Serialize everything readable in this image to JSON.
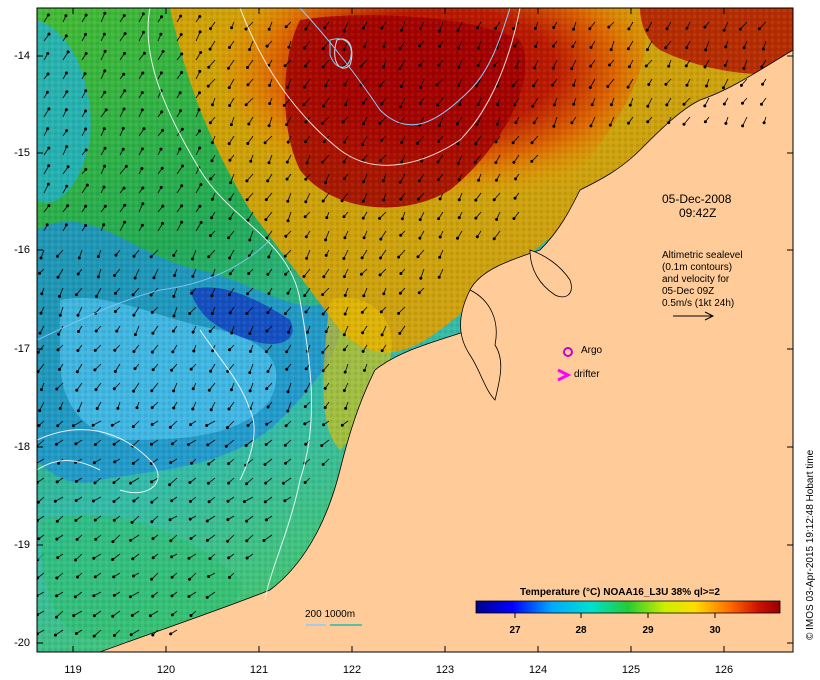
{
  "figure": {
    "date_line1": "05-Dec-2008",
    "date_line2": "09:42Z",
    "altimetry_note": [
      "Altimetric sealevel",
      "(0.1m contours)",
      "and velocity for",
      "05-Dec 09Z",
      "0.5m/s (1kt 24h)"
    ],
    "legend_argo": "Argo",
    "legend_drifter": "drifter",
    "depth_label": "200  1000m",
    "credit": "© IMOS 03-Apr-2015 19:12:48 Hobart time",
    "colorbar_title": "Temperature (°C) NOAA16_L3U 38% ql>=2",
    "colorbar_ticks": [
      "27",
      "28",
      "29",
      "30"
    ],
    "colors": {
      "land": "#ffcc99",
      "argo": "#cc00cc",
      "drifter": "#ff00ff",
      "contour": "#ffffff",
      "depth_200": "#88ccff",
      "depth_1000": "#22bbaa"
    }
  },
  "axes": {
    "x_ticks": [
      "119",
      "120",
      "121",
      "122",
      "123",
      "124",
      "125",
      "126"
    ],
    "y_ticks": [
      "-14",
      "-15",
      "-16",
      "-17",
      "-18",
      "-19",
      "-20"
    ]
  }
}
